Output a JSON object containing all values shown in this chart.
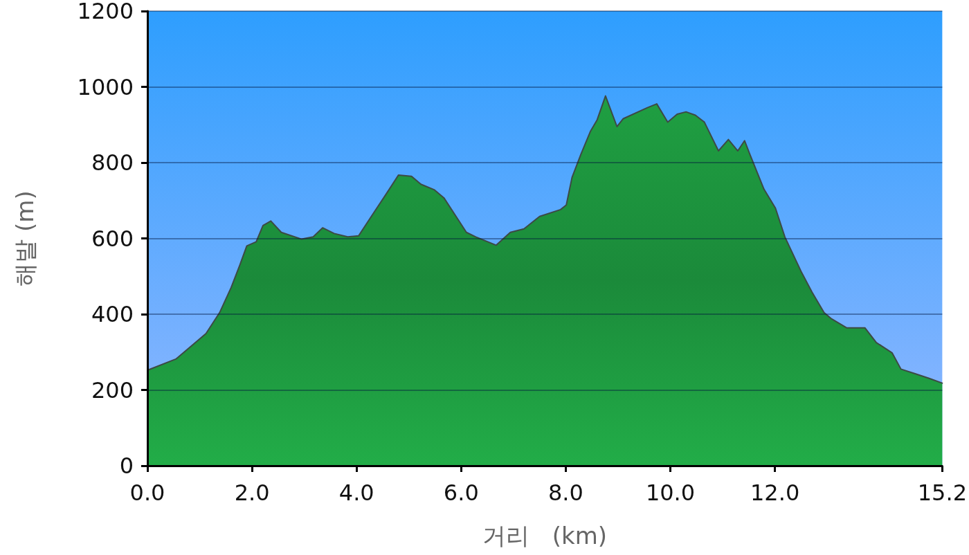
{
  "chart_data": {
    "type": "area",
    "xlabel": "거리   (km)",
    "ylabel": "해발 (m)",
    "color": "#22ad48",
    "x": [
      0,
      0.55,
      1.12,
      1.38,
      1.6,
      1.77,
      1.9,
      2.08,
      2.21,
      2.36,
      2.56,
      2.95,
      3.17,
      3.35,
      3.57,
      3.83,
      4.04,
      4.31,
      4.57,
      4.8,
      5.05,
      5.23,
      5.49,
      5.67,
      5.93,
      6.1,
      6.28,
      6.67,
      6.94,
      7.2,
      7.5,
      7.9,
      8.01,
      8.12,
      8.29,
      8.47,
      8.6,
      8.76,
      8.98,
      9.1,
      9.56,
      9.74,
      9.95,
      10.13,
      10.3,
      10.48,
      10.65,
      10.92,
      11.11,
      11.29,
      11.42,
      11.52,
      11.79,
      12.01,
      12.19,
      12.5,
      12.71,
      12.94,
      13.07,
      13.37,
      13.72,
      13.94,
      14.24,
      14.41,
      14.68,
      14.94,
      15.2
    ],
    "values": [
      252,
      282,
      349,
      404,
      470,
      531,
      580,
      591,
      634,
      646,
      616,
      598,
      604,
      628,
      613,
      604,
      607,
      664,
      718,
      767,
      764,
      743,
      728,
      707,
      652,
      616,
      604,
      582,
      616,
      625,
      658,
      676,
      688,
      761,
      822,
      882,
      913,
      976,
      895,
      916,
      945,
      955,
      907,
      928,
      934,
      925,
      907,
      831,
      861,
      831,
      858,
      822,
      730,
      680,
      604,
      513,
      458,
      404,
      389,
      364,
      364,
      325,
      298,
      255,
      243,
      231,
      218
    ],
    "xlim": [
      0,
      15.2
    ],
    "xticks": [
      {
        "value": 0,
        "label": "0.0"
      },
      {
        "value": 2,
        "label": "2.0"
      },
      {
        "value": 4,
        "label": "4.0"
      },
      {
        "value": 6,
        "label": "6.0"
      },
      {
        "value": 8,
        "label": "8.0"
      },
      {
        "value": 10,
        "label": "10.0"
      },
      {
        "value": 12,
        "label": "12.0"
      },
      {
        "value": 15.2,
        "label": "15.2"
      }
    ],
    "ylim": [
      0,
      1200
    ],
    "yticks": [
      0,
      200,
      400,
      600,
      800,
      1000,
      1200
    ],
    "grid": "y"
  }
}
